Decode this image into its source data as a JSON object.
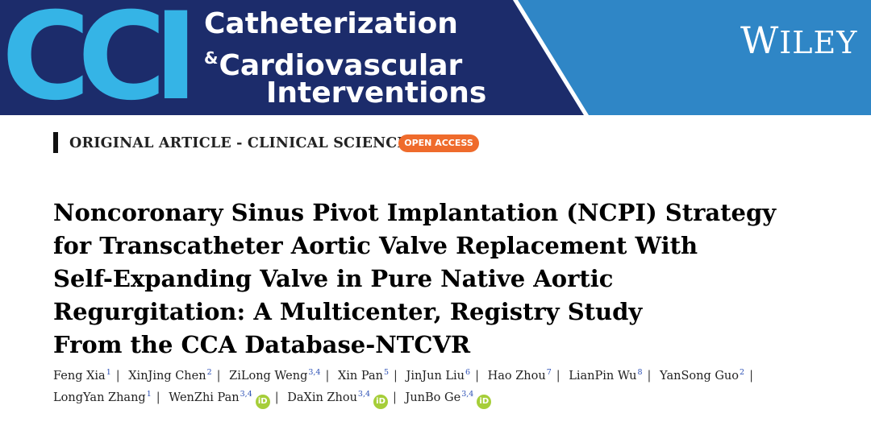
{
  "banner": {
    "logo_text": "CCI",
    "journal_line1": "Catheterization",
    "journal_amp": "&",
    "journal_line2": "Cardiovascular",
    "journal_line3": "Interventions",
    "publisher_initial": "W",
    "publisher_rest": "ILEY",
    "colors": {
      "navy": "#1c2c6b",
      "sky": "#2f86c6",
      "cyan": "#35b4e6"
    }
  },
  "section": {
    "label": "ORIGINAL ARTICLE - CLINICAL SCIENCE",
    "badge": "OPEN ACCESS"
  },
  "title_lines": [
    "Noncoronary Sinus Pivot Implantation (NCPI) Strategy",
    "for Transcatheter Aortic Valve Replacement With",
    "Self-Expanding Valve in Pure Native Aortic",
    "Regurgitation: A Multicenter, Registry Study",
    "From the CCA Database-NTCVR"
  ],
  "authors": [
    {
      "name": "Feng Xia",
      "aff": "1",
      "orcid": false
    },
    {
      "name": "XinJing Chen",
      "aff": "2",
      "orcid": false
    },
    {
      "name": "ZiLong Weng",
      "aff": "3,4",
      "orcid": false
    },
    {
      "name": "Xin Pan",
      "aff": "5",
      "orcid": false
    },
    {
      "name": "JinJun Liu",
      "aff": "6",
      "orcid": false
    },
    {
      "name": "Hao Zhou",
      "aff": "7",
      "orcid": false
    },
    {
      "name": "LianPin Wu",
      "aff": "8",
      "orcid": false
    },
    {
      "name": "YanSong Guo",
      "aff": "2",
      "orcid": false
    },
    {
      "name": "LongYan Zhang",
      "aff": "1",
      "orcid": false
    },
    {
      "name": "WenZhi Pan",
      "aff": "3,4",
      "orcid": true
    },
    {
      "name": "DaXin Zhou",
      "aff": "3,4",
      "orcid": true
    },
    {
      "name": "JunBo Ge",
      "aff": "3,4",
      "orcid": true
    }
  ],
  "orcid_icon_text": "iD",
  "author_separator": "|"
}
